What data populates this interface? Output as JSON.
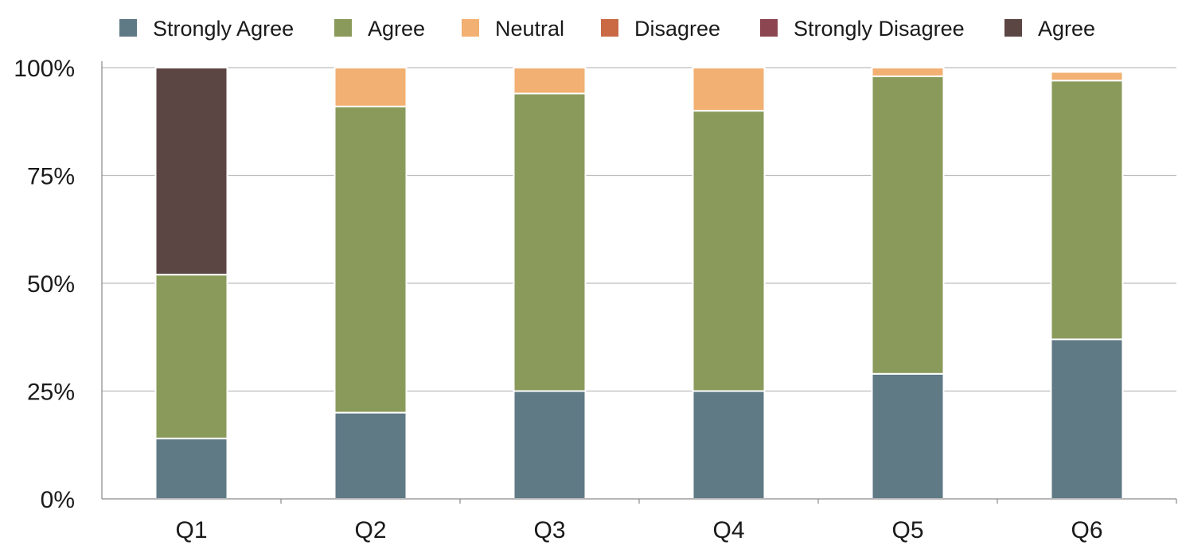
{
  "chart_data": {
    "type": "bar",
    "stacked": true,
    "title": "",
    "xlabel": "",
    "ylabel": "",
    "ylim": [
      0,
      100
    ],
    "yticks": [
      "0%",
      "25%",
      "50%",
      "75%",
      "100%"
    ],
    "grid": true,
    "legend": "top",
    "categories": [
      "Q1",
      "Q2",
      "Q3",
      "Q4",
      "Q5",
      "Q6"
    ],
    "series": [
      {
        "name": "Strongly Agree",
        "color": "#5f7a85",
        "values": [
          14,
          20,
          25,
          25,
          29,
          37
        ]
      },
      {
        "name": "Agree",
        "color": "#8a9a5b",
        "values": [
          38,
          71,
          69,
          65,
          69,
          60
        ]
      },
      {
        "name": "Neutral",
        "color": "#f2b072",
        "values": [
          0,
          9,
          6,
          10,
          2,
          2
        ]
      },
      {
        "name": "Disagree",
        "color": "#c96a45",
        "values": [
          0,
          0,
          0,
          0,
          0,
          0
        ]
      },
      {
        "name": "Strongly Disagree",
        "color": "#8c4652",
        "values": [
          0,
          0,
          0,
          0,
          0,
          0
        ]
      },
      {
        "name": "Agree",
        "color": "#5c4644",
        "values": [
          48,
          0,
          0,
          0,
          0,
          0
        ]
      }
    ]
  }
}
